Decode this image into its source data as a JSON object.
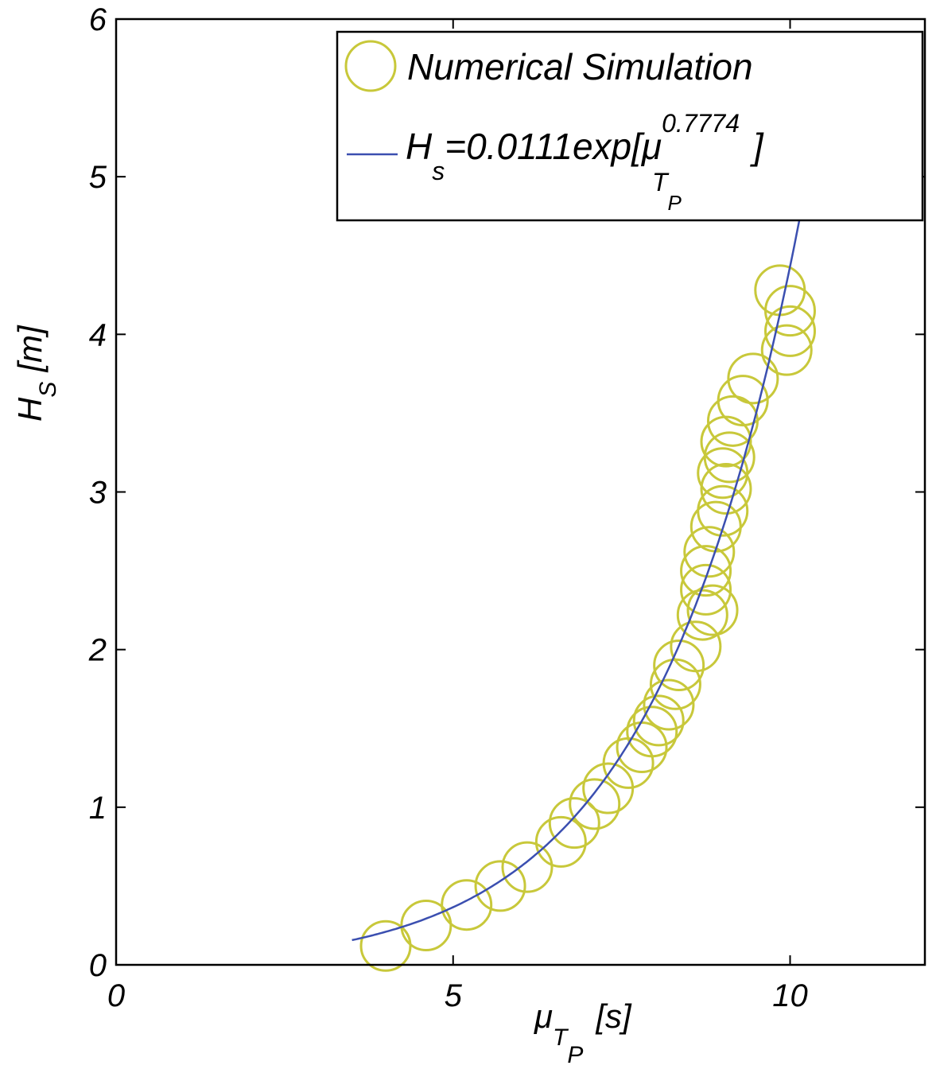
{
  "chart_data": {
    "type": "scatter",
    "xlabel": {
      "main": "μ",
      "sub1": "T",
      "sub2": "P",
      "unit": "[s]"
    },
    "ylabel": {
      "main": "H",
      "sub": "S",
      "unit": "[m]"
    },
    "xlim": [
      0,
      12
    ],
    "ylim": [
      0,
      6
    ],
    "xticks": [
      "0",
      "5",
      "10"
    ],
    "yticks": [
      "0",
      "1",
      "2",
      "3",
      "4",
      "5",
      "6"
    ],
    "colors": {
      "scatter": "#c8c83a",
      "fit": "#3b4fb0"
    },
    "legend": {
      "position": "top-right",
      "scatter_label": "Numerical Simulation",
      "fit_label": {
        "h": "H",
        "h_sub": "s",
        "body": "=0.0111exp[μ",
        "mu_sub": "T",
        "mu_subsub": "P",
        "exponent": "0.7774",
        "close": "]"
      }
    },
    "series": [
      {
        "name": "Numerical Simulation",
        "type": "scatter",
        "x": [
          4.0,
          4.6,
          5.2,
          5.7,
          6.1,
          6.6,
          6.8,
          7.1,
          7.3,
          7.6,
          7.8,
          7.95,
          8.05,
          8.2,
          8.3,
          8.35,
          8.6,
          8.7,
          8.75,
          8.85,
          8.75,
          8.8,
          8.9,
          9.0,
          9.05,
          9.0,
          9.1,
          9.05,
          9.15,
          9.3,
          9.45,
          9.85,
          10.0,
          10.0,
          9.95
        ],
        "y": [
          0.12,
          0.25,
          0.38,
          0.5,
          0.62,
          0.78,
          0.9,
          1.02,
          1.12,
          1.28,
          1.38,
          1.48,
          1.55,
          1.65,
          1.78,
          1.9,
          2.02,
          2.22,
          2.38,
          2.25,
          2.5,
          2.62,
          2.78,
          2.88,
          3.02,
          3.12,
          3.22,
          3.32,
          3.45,
          3.58,
          3.72,
          4.28,
          4.15,
          4.02,
          3.9
        ]
      },
      {
        "name": "fit",
        "type": "line",
        "equation": {
          "a": 0.0111,
          "b": 0.7774
        }
      }
    ]
  }
}
